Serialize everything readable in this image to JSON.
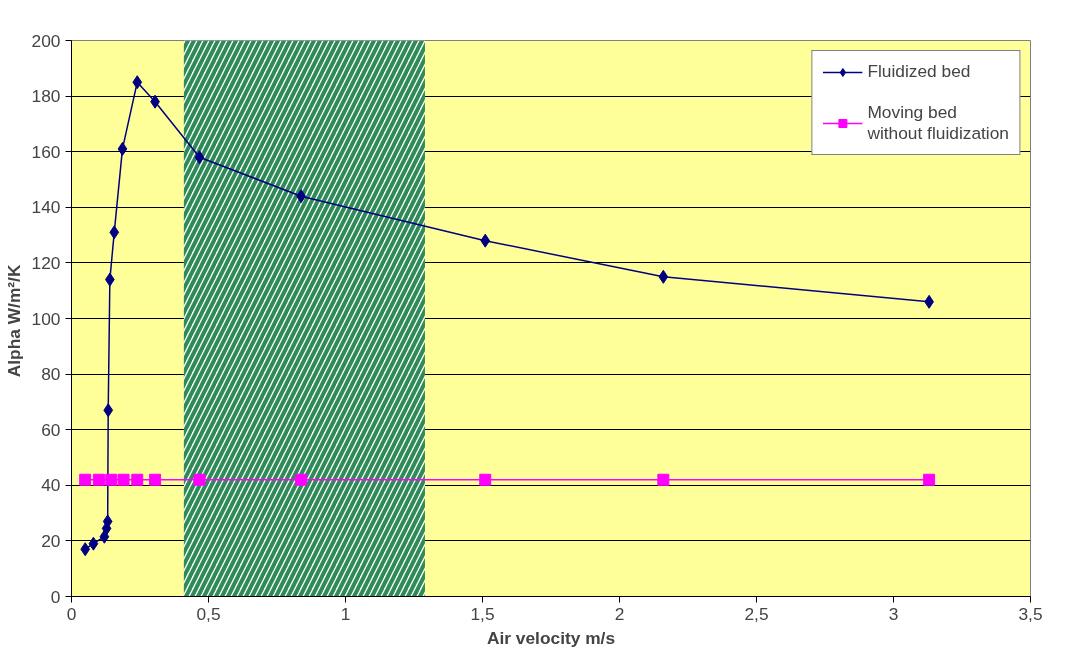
{
  "chart_data": {
    "type": "line",
    "xlabel": "Air velocity m/s",
    "ylabel": "Alpha  W/m²/K",
    "xlim": [
      0,
      3.5
    ],
    "ylim": [
      0,
      200
    ],
    "xticks": [
      0,
      {
        "value": 0.5,
        "label": "0,5"
      },
      1,
      {
        "value": 1.5,
        "label": "1,5"
      },
      2,
      {
        "value": 2.5,
        "label": "2,5"
      },
      3,
      {
        "value": 3.5,
        "label": "3,5"
      }
    ],
    "yticks": [
      0,
      20,
      40,
      60,
      80,
      100,
      120,
      140,
      160,
      180,
      200
    ],
    "grid": "y",
    "legend": "top right",
    "line_style": "solid",
    "bands": [
      {
        "axis": "x",
        "from": 0.41,
        "to": 1.29,
        "color": "#2e8b57"
      }
    ],
    "series": [
      {
        "name": "Fluidized bed",
        "color": "#000080",
        "marker": "diamond",
        "x": [
          0.05,
          0.08,
          0.12,
          0.128,
          0.132,
          0.134,
          0.14,
          0.156,
          0.186,
          0.24,
          0.305,
          0.467,
          0.838,
          1.51,
          2.16,
          3.13
        ],
        "values": [
          17,
          19,
          21.5,
          24.5,
          27,
          67,
          114,
          131,
          161,
          185,
          178,
          158,
          144,
          128,
          115,
          106
        ]
      },
      {
        "name": "Moving bed\nwithout fluidization",
        "color": "#ff00ff",
        "marker": "square",
        "x": [
          0.05,
          0.1,
          0.145,
          0.19,
          0.24,
          0.305,
          0.467,
          0.838,
          1.51,
          2.16,
          3.13
        ],
        "values": [
          42,
          42,
          42,
          42,
          42,
          42,
          42,
          42,
          42,
          42,
          42
        ]
      }
    ]
  }
}
